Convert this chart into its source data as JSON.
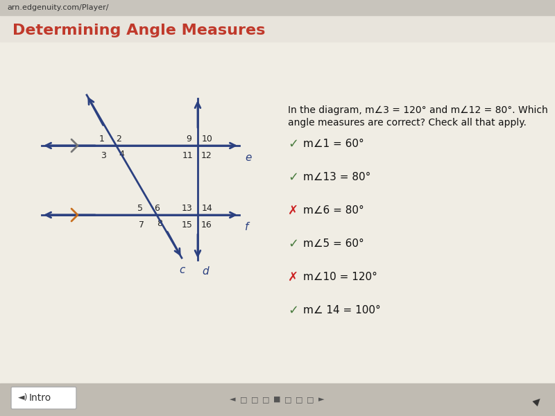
{
  "title": "Determining Angle Measures",
  "title_color": "#c0392b",
  "bg_color": "#f0ede4",
  "header_bg": "#d8d4cc",
  "question_text_line1": "In the diagram, m∠3 = 120° and m∠12 = 80°. Which",
  "question_text_line2": "angle measures are correct? Check all that apply.",
  "answers": [
    {
      "symbol": "✓",
      "text": "m∠1 = 60°",
      "correct": true
    },
    {
      "symbol": "✓",
      "text": "m∠13 = 80°",
      "correct": true
    },
    {
      "symbol": "✗",
      "text": "m∠6 = 80°",
      "correct": false
    },
    {
      "symbol": "✓",
      "text": "m∠5 = 60°",
      "correct": true
    },
    {
      "symbol": "✗",
      "text": "m∠10 = 120°",
      "correct": false
    },
    {
      "symbol": "✓",
      "text": "m∠ 14 = 100°",
      "correct": true
    }
  ],
  "check_color_true": "#4a7c3f",
  "check_color_false": "#cc2222",
  "line_color": "#2b4080",
  "number_color": "#222222",
  "label_italic_color": "#2b4080",
  "tick_color_top": "#777777",
  "tick_color_bot": "#c87020"
}
